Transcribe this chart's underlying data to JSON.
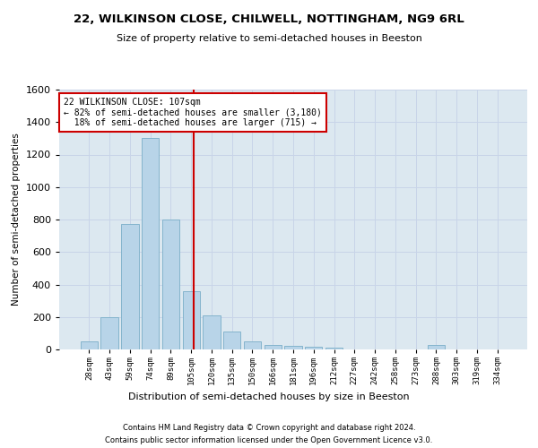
{
  "title": "22, WILKINSON CLOSE, CHILWELL, NOTTINGHAM, NG9 6RL",
  "subtitle": "Size of property relative to semi-detached houses in Beeston",
  "xlabel": "Distribution of semi-detached houses by size in Beeston",
  "ylabel": "Number of semi-detached properties",
  "footer_line1": "Contains HM Land Registry data © Crown copyright and database right 2024.",
  "footer_line2": "Contains public sector information licensed under the Open Government Licence v3.0.",
  "bin_labels": [
    "28sqm",
    "43sqm",
    "59sqm",
    "74sqm",
    "89sqm",
    "105sqm",
    "120sqm",
    "135sqm",
    "150sqm",
    "166sqm",
    "181sqm",
    "196sqm",
    "212sqm",
    "227sqm",
    "242sqm",
    "258sqm",
    "273sqm",
    "288sqm",
    "303sqm",
    "319sqm",
    "334sqm"
  ],
  "bar_values": [
    50,
    200,
    775,
    1300,
    800,
    360,
    210,
    110,
    50,
    30,
    20,
    15,
    10,
    0,
    0,
    0,
    0,
    30,
    0,
    0,
    0
  ],
  "bar_color": "#b8d4e8",
  "bar_edge_color": "#7aaec8",
  "grid_color": "#c8d4e8",
  "background_color": "#dce8f0",
  "property_label": "22 WILKINSON CLOSE: 107sqm",
  "pct_smaller": 82,
  "count_smaller": 3180,
  "pct_larger": 18,
  "count_larger": 715,
  "vline_color": "#cc0000",
  "annotation_box_color": "#cc0000",
  "ylim": [
    0,
    1600
  ],
  "yticks": [
    0,
    200,
    400,
    600,
    800,
    1000,
    1200,
    1400,
    1600
  ],
  "vline_pos": 5.13
}
